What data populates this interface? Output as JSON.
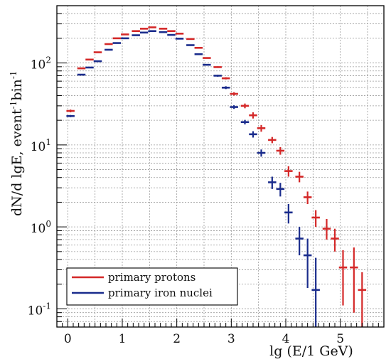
{
  "chart_data": {
    "type": "scatter",
    "title": "",
    "xlabel": "lg (E/1 GeV)",
    "ylabel_main": "dN/d lgE, event",
    "ylabel_sup1": "-1",
    "ylabel_mid": "bin",
    "ylabel_sup2": "-1",
    "x_range": [
      -0.2,
      5.8
    ],
    "y_range": [
      0.06,
      500
    ],
    "y_scale": "log",
    "x_ticks": [
      {
        "value": 0,
        "label": "0"
      },
      {
        "value": 1,
        "label": "1"
      },
      {
        "value": 2,
        "label": "2"
      },
      {
        "value": 3,
        "label": "3"
      },
      {
        "value": 4,
        "label": "4"
      },
      {
        "value": 5,
        "label": "5"
      }
    ],
    "y_ticks": [
      {
        "value": 0.1,
        "base": "10",
        "exp": "-1"
      },
      {
        "value": 1,
        "base": "10",
        "exp": "0"
      },
      {
        "value": 10,
        "base": "10",
        "exp": "1"
      },
      {
        "value": 100,
        "base": "10",
        "exp": "2"
      }
    ],
    "grid": true,
    "legend_position": "bottom-left",
    "series": [
      {
        "name": "primary protons",
        "color": "#d42828",
        "points": [
          {
            "x": 0.05,
            "y": 26,
            "ylo": 25,
            "yhi": 27
          },
          {
            "x": 0.25,
            "y": 86,
            "ylo": 85,
            "yhi": 87
          },
          {
            "x": 0.4,
            "y": 110,
            "ylo": 109,
            "yhi": 111
          },
          {
            "x": 0.55,
            "y": 135,
            "ylo": 134,
            "yhi": 136
          },
          {
            "x": 0.75,
            "y": 170,
            "ylo": 169,
            "yhi": 171
          },
          {
            "x": 0.9,
            "y": 200,
            "ylo": 199,
            "yhi": 201
          },
          {
            "x": 1.05,
            "y": 223,
            "ylo": 222,
            "yhi": 224
          },
          {
            "x": 1.25,
            "y": 245,
            "ylo": 244,
            "yhi": 246
          },
          {
            "x": 1.4,
            "y": 262,
            "ylo": 261,
            "yhi": 263
          },
          {
            "x": 1.55,
            "y": 272,
            "ylo": 271,
            "yhi": 273
          },
          {
            "x": 1.75,
            "y": 262,
            "ylo": 261,
            "yhi": 263
          },
          {
            "x": 1.9,
            "y": 245,
            "ylo": 244,
            "yhi": 246
          },
          {
            "x": 2.05,
            "y": 228,
            "ylo": 227,
            "yhi": 229
          },
          {
            "x": 2.25,
            "y": 196,
            "ylo": 195,
            "yhi": 197
          },
          {
            "x": 2.4,
            "y": 153,
            "ylo": 152,
            "yhi": 154
          },
          {
            "x": 2.55,
            "y": 115,
            "ylo": 114,
            "yhi": 116
          },
          {
            "x": 2.75,
            "y": 89,
            "ylo": 87,
            "yhi": 91
          },
          {
            "x": 2.9,
            "y": 65,
            "ylo": 63,
            "yhi": 67
          },
          {
            "x": 3.05,
            "y": 42,
            "ylo": 40,
            "yhi": 44
          },
          {
            "x": 3.25,
            "y": 30,
            "ylo": 28,
            "yhi": 32
          },
          {
            "x": 3.4,
            "y": 23,
            "ylo": 21,
            "yhi": 25
          },
          {
            "x": 3.55,
            "y": 16,
            "ylo": 14.5,
            "yhi": 17.5
          },
          {
            "x": 3.75,
            "y": 11.5,
            "ylo": 10.5,
            "yhi": 12.5
          },
          {
            "x": 3.9,
            "y": 8.5,
            "ylo": 7.6,
            "yhi": 9.4
          },
          {
            "x": 4.05,
            "y": 4.8,
            "ylo": 4.1,
            "yhi": 5.5
          },
          {
            "x": 4.25,
            "y": 4.1,
            "ylo": 3.5,
            "yhi": 4.7
          },
          {
            "x": 4.4,
            "y": 2.3,
            "ylo": 1.9,
            "yhi": 2.7
          },
          {
            "x": 4.55,
            "y": 1.3,
            "ylo": 1.0,
            "yhi": 1.6
          },
          {
            "x": 4.75,
            "y": 0.95,
            "ylo": 0.7,
            "yhi": 1.25
          },
          {
            "x": 4.9,
            "y": 0.72,
            "ylo": 0.5,
            "yhi": 0.95
          },
          {
            "x": 5.05,
            "y": 0.32,
            "ylo": 0.11,
            "yhi": 0.52
          },
          {
            "x": 5.25,
            "y": 0.32,
            "ylo": 0.09,
            "yhi": 0.56
          },
          {
            "x": 5.4,
            "y": 0.17,
            "ylo": 0.06,
            "yhi": 0.28
          }
        ]
      },
      {
        "name": "primary iron nuclei",
        "color": "#1a2c8c",
        "points": [
          {
            "x": 0.05,
            "y": 22.5,
            "ylo": 21.8,
            "yhi": 23.2
          },
          {
            "x": 0.25,
            "y": 72,
            "ylo": 71,
            "yhi": 73
          },
          {
            "x": 0.4,
            "y": 88,
            "ylo": 87,
            "yhi": 89
          },
          {
            "x": 0.55,
            "y": 105,
            "ylo": 104,
            "yhi": 106
          },
          {
            "x": 0.75,
            "y": 145,
            "ylo": 144,
            "yhi": 146
          },
          {
            "x": 0.9,
            "y": 175,
            "ylo": 174,
            "yhi": 176
          },
          {
            "x": 1.05,
            "y": 200,
            "ylo": 199,
            "yhi": 201
          },
          {
            "x": 1.25,
            "y": 218,
            "ylo": 217,
            "yhi": 219
          },
          {
            "x": 1.4,
            "y": 235,
            "ylo": 234,
            "yhi": 236
          },
          {
            "x": 1.55,
            "y": 245,
            "ylo": 244,
            "yhi": 246
          },
          {
            "x": 1.75,
            "y": 238,
            "ylo": 237,
            "yhi": 239
          },
          {
            "x": 1.9,
            "y": 220,
            "ylo": 219,
            "yhi": 221
          },
          {
            "x": 2.05,
            "y": 198,
            "ylo": 197,
            "yhi": 199
          },
          {
            "x": 2.25,
            "y": 165,
            "ylo": 164,
            "yhi": 166
          },
          {
            "x": 2.4,
            "y": 128,
            "ylo": 127,
            "yhi": 129
          },
          {
            "x": 2.55,
            "y": 95,
            "ylo": 94,
            "yhi": 96
          },
          {
            "x": 2.75,
            "y": 70,
            "ylo": 68,
            "yhi": 72
          },
          {
            "x": 2.9,
            "y": 50,
            "ylo": 48,
            "yhi": 52
          },
          {
            "x": 3.05,
            "y": 29,
            "ylo": 27.5,
            "yhi": 30.5
          },
          {
            "x": 3.25,
            "y": 19,
            "ylo": 17.8,
            "yhi": 20.2
          },
          {
            "x": 3.4,
            "y": 13.5,
            "ylo": 12.3,
            "yhi": 14.7
          },
          {
            "x": 3.55,
            "y": 8,
            "ylo": 7.2,
            "yhi": 8.8
          },
          {
            "x": 3.75,
            "y": 3.5,
            "ylo": 2.9,
            "yhi": 4.1
          },
          {
            "x": 3.9,
            "y": 2.9,
            "ylo": 2.35,
            "yhi": 3.45
          },
          {
            "x": 4.05,
            "y": 1.5,
            "ylo": 1.1,
            "yhi": 1.9
          },
          {
            "x": 4.25,
            "y": 0.72,
            "ylo": 0.45,
            "yhi": 1.0
          },
          {
            "x": 4.4,
            "y": 0.45,
            "ylo": 0.18,
            "yhi": 0.72
          },
          {
            "x": 4.55,
            "y": 0.17,
            "ylo": 0.04,
            "yhi": 0.42
          }
        ]
      }
    ]
  }
}
